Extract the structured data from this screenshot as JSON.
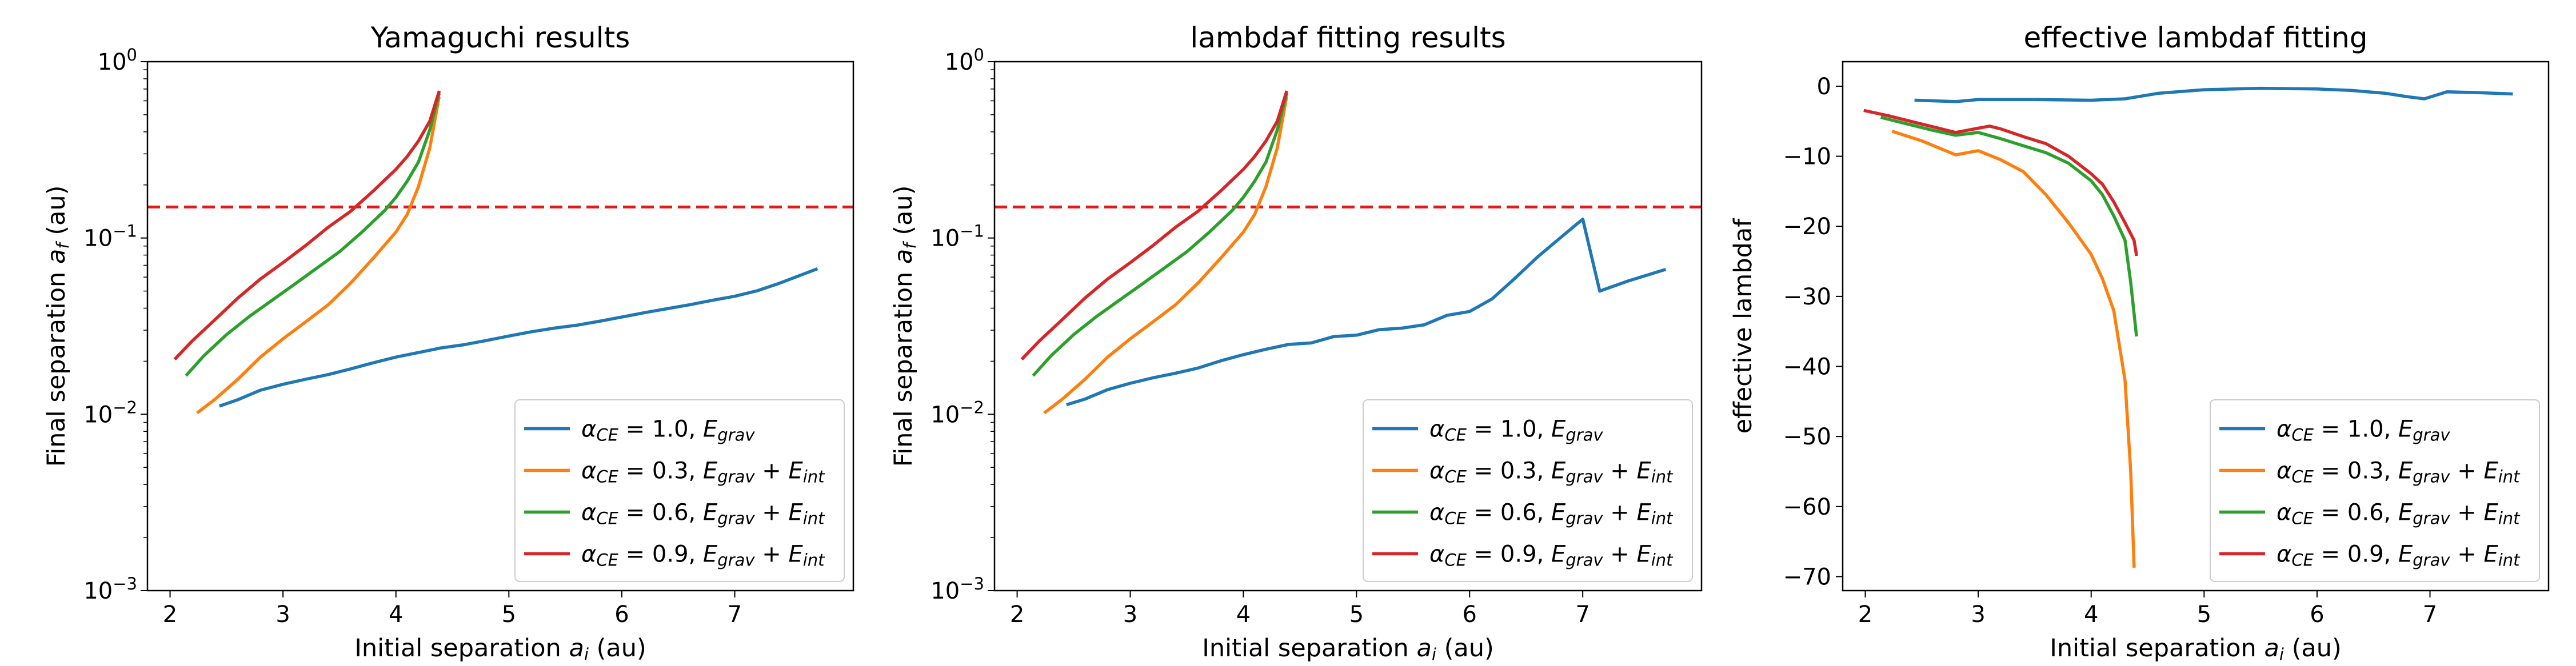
{
  "chart_data": [
    {
      "type": "line",
      "title": "Yamaguchi results",
      "xlabel": "Initial separation",
      "xlabel_var": "a",
      "xlabel_sub": "i",
      "xlabel_unit": " (au)",
      "ylabel": "Final separation",
      "ylabel_var": "a",
      "ylabel_sub": "f",
      "ylabel_unit": " (au)",
      "yscale": "log",
      "xlim": [
        1.8,
        8.05
      ],
      "ylim": [
        0.001,
        1.0
      ],
      "xticks": [
        "2",
        "3",
        "4",
        "5",
        "6",
        "7"
      ],
      "yticks": [
        {
          "base": "10",
          "exp": "0"
        },
        {
          "base": "10",
          "exp": "−1"
        },
        {
          "base": "10",
          "exp": "−2"
        },
        {
          "base": "10",
          "exp": "−3"
        }
      ],
      "hline": {
        "y": 0.15,
        "color": "#e31a1c",
        "style": "dashed"
      },
      "legend_position": "lower right",
      "series": [
        {
          "color": "#1f77b4",
          "legend": [
            {
              "t": "α",
              "i": true
            },
            {
              "t": "CE",
              "sub": true,
              "i": true
            },
            {
              "t": " = 1.0, "
            },
            {
              "t": "E",
              "i": true
            },
            {
              "t": "grav",
              "sub": true,
              "i": true
            }
          ],
          "x": [
            2.45,
            2.6,
            2.8,
            3.0,
            3.2,
            3.4,
            3.6,
            3.8,
            4.0,
            4.2,
            4.4,
            4.6,
            4.8,
            5.0,
            5.2,
            5.4,
            5.6,
            5.8,
            6.0,
            6.2,
            6.4,
            6.6,
            6.8,
            7.0,
            7.2,
            7.4,
            7.72
          ],
          "y": [
            0.0112,
            0.0121,
            0.0137,
            0.0148,
            0.0158,
            0.0168,
            0.0181,
            0.0196,
            0.0211,
            0.0224,
            0.0238,
            0.0248,
            0.0262,
            0.0278,
            0.0294,
            0.0308,
            0.032,
            0.0337,
            0.0356,
            0.0377,
            0.0397,
            0.0418,
            0.0443,
            0.0467,
            0.0502,
            0.0555,
            0.0665
          ]
        },
        {
          "color": "#ff7f0e",
          "legend": [
            {
              "t": "α",
              "i": true
            },
            {
              "t": "CE",
              "sub": true,
              "i": true
            },
            {
              "t": " = 0.3, "
            },
            {
              "t": "E",
              "i": true
            },
            {
              "t": "grav",
              "sub": true,
              "i": true
            },
            {
              "t": " + "
            },
            {
              "t": "E",
              "i": true
            },
            {
              "t": "int",
              "sub": true,
              "i": true
            }
          ],
          "x": [
            2.25,
            2.4,
            2.6,
            2.8,
            3.0,
            3.2,
            3.4,
            3.6,
            3.8,
            4.0,
            4.1,
            4.2,
            4.3,
            4.38
          ],
          "y": [
            0.0103,
            0.0122,
            0.0158,
            0.0211,
            0.0268,
            0.0334,
            0.0418,
            0.0556,
            0.0769,
            0.108,
            0.136,
            0.196,
            0.325,
            0.62
          ]
        },
        {
          "color": "#2ca02c",
          "legend": [
            {
              "t": "α",
              "i": true
            },
            {
              "t": "CE",
              "sub": true,
              "i": true
            },
            {
              "t": " = 0.6, "
            },
            {
              "t": "E",
              "i": true
            },
            {
              "t": "grav",
              "sub": true,
              "i": true
            },
            {
              "t": " + "
            },
            {
              "t": "E",
              "i": true
            },
            {
              "t": "int",
              "sub": true,
              "i": true
            }
          ],
          "x": [
            2.15,
            2.3,
            2.5,
            2.7,
            2.9,
            3.1,
            3.3,
            3.5,
            3.7,
            3.9,
            4.0,
            4.1,
            4.2,
            4.3,
            4.38
          ],
          "y": [
            0.0168,
            0.0215,
            0.0283,
            0.0358,
            0.0442,
            0.0545,
            0.0675,
            0.0835,
            0.108,
            0.143,
            0.17,
            0.21,
            0.27,
            0.41,
            0.65
          ]
        },
        {
          "color": "#d62728",
          "legend": [
            {
              "t": "α",
              "i": true
            },
            {
              "t": "CE",
              "sub": true,
              "i": true
            },
            {
              "t": " = 0.9, "
            },
            {
              "t": "E",
              "i": true
            },
            {
              "t": "grav",
              "sub": true,
              "i": true
            },
            {
              "t": " + "
            },
            {
              "t": "E",
              "i": true
            },
            {
              "t": "int",
              "sub": true,
              "i": true
            }
          ],
          "x": [
            2.05,
            2.2,
            2.4,
            2.6,
            2.8,
            3.0,
            3.2,
            3.4,
            3.6,
            3.8,
            4.0,
            4.1,
            4.2,
            4.3,
            4.38
          ],
          "y": [
            0.0208,
            0.0262,
            0.0345,
            0.0456,
            0.0585,
            0.0725,
            0.0905,
            0.115,
            0.142,
            0.185,
            0.245,
            0.29,
            0.355,
            0.46,
            0.67
          ]
        }
      ]
    },
    {
      "type": "line",
      "title": "lambdaf fitting results",
      "xlabel": "Initial separation",
      "xlabel_var": "a",
      "xlabel_sub": "i",
      "xlabel_unit": " (au)",
      "ylabel": "Final separation",
      "ylabel_var": "a",
      "ylabel_sub": "f",
      "ylabel_unit": " (au)",
      "yscale": "log",
      "xlim": [
        1.8,
        8.05
      ],
      "ylim": [
        0.001,
        1.0
      ],
      "xticks": [
        "2",
        "3",
        "4",
        "5",
        "6",
        "7"
      ],
      "yticks": [
        {
          "base": "10",
          "exp": "0"
        },
        {
          "base": "10",
          "exp": "−1"
        },
        {
          "base": "10",
          "exp": "−2"
        },
        {
          "base": "10",
          "exp": "−3"
        }
      ],
      "hline": {
        "y": 0.15,
        "color": "#e31a1c",
        "style": "dashed"
      },
      "legend_position": "lower right",
      "series": [
        {
          "color": "#1f77b4",
          "legend": [
            {
              "t": "α",
              "i": true
            },
            {
              "t": "CE",
              "sub": true,
              "i": true
            },
            {
              "t": " = 1.0, "
            },
            {
              "t": "E",
              "i": true
            },
            {
              "t": "grav",
              "sub": true,
              "i": true
            }
          ],
          "x": [
            2.45,
            2.6,
            2.8,
            3.0,
            3.2,
            3.4,
            3.6,
            3.8,
            4.0,
            4.2,
            4.4,
            4.6,
            4.8,
            5.0,
            5.2,
            5.4,
            5.6,
            5.8,
            6.0,
            6.2,
            6.4,
            6.6,
            6.8,
            7.0,
            7.15,
            7.4,
            7.72
          ],
          "y": [
            0.0114,
            0.0122,
            0.0138,
            0.015,
            0.0161,
            0.0171,
            0.0183,
            0.0201,
            0.0218,
            0.0234,
            0.0249,
            0.0254,
            0.0276,
            0.0281,
            0.0302,
            0.0308,
            0.0322,
            0.0364,
            0.0383,
            0.0452,
            0.059,
            0.078,
            0.1,
            0.128,
            0.05,
            0.057,
            0.066
          ]
        },
        {
          "color": "#ff7f0e",
          "legend": [
            {
              "t": "α",
              "i": true
            },
            {
              "t": "CE",
              "sub": true,
              "i": true
            },
            {
              "t": " = 0.3, "
            },
            {
              "t": "E",
              "i": true
            },
            {
              "t": "grav",
              "sub": true,
              "i": true
            },
            {
              "t": " + "
            },
            {
              "t": "E",
              "i": true
            },
            {
              "t": "int",
              "sub": true,
              "i": true
            }
          ],
          "x": [
            2.25,
            2.4,
            2.6,
            2.8,
            3.0,
            3.2,
            3.4,
            3.6,
            3.8,
            4.0,
            4.1,
            4.2,
            4.3,
            4.38
          ],
          "y": [
            0.0103,
            0.0122,
            0.0158,
            0.0211,
            0.0268,
            0.0334,
            0.0418,
            0.0556,
            0.0769,
            0.108,
            0.136,
            0.196,
            0.325,
            0.62
          ]
        },
        {
          "color": "#2ca02c",
          "legend": [
            {
              "t": "α",
              "i": true
            },
            {
              "t": "CE",
              "sub": true,
              "i": true
            },
            {
              "t": " = 0.6, "
            },
            {
              "t": "E",
              "i": true
            },
            {
              "t": "grav",
              "sub": true,
              "i": true
            },
            {
              "t": " + "
            },
            {
              "t": "E",
              "i": true
            },
            {
              "t": "int",
              "sub": true,
              "i": true
            }
          ],
          "x": [
            2.15,
            2.3,
            2.5,
            2.7,
            2.9,
            3.1,
            3.3,
            3.5,
            3.7,
            3.9,
            4.0,
            4.1,
            4.2,
            4.3,
            4.38
          ],
          "y": [
            0.0168,
            0.0215,
            0.0283,
            0.0358,
            0.0442,
            0.0545,
            0.0675,
            0.0835,
            0.108,
            0.143,
            0.17,
            0.21,
            0.27,
            0.41,
            0.65
          ]
        },
        {
          "color": "#d62728",
          "legend": [
            {
              "t": "α",
              "i": true
            },
            {
              "t": "CE",
              "sub": true,
              "i": true
            },
            {
              "t": " = 0.9, "
            },
            {
              "t": "E",
              "i": true
            },
            {
              "t": "grav",
              "sub": true,
              "i": true
            },
            {
              "t": " + "
            },
            {
              "t": "E",
              "i": true
            },
            {
              "t": "int",
              "sub": true,
              "i": true
            }
          ],
          "x": [
            2.05,
            2.2,
            2.4,
            2.6,
            2.8,
            3.0,
            3.2,
            3.4,
            3.6,
            3.8,
            4.0,
            4.1,
            4.2,
            4.3,
            4.38
          ],
          "y": [
            0.0208,
            0.0262,
            0.0345,
            0.0456,
            0.0585,
            0.0725,
            0.0905,
            0.115,
            0.142,
            0.185,
            0.245,
            0.29,
            0.355,
            0.46,
            0.67
          ]
        }
      ]
    },
    {
      "type": "line",
      "title": "effective lambdaf fitting",
      "xlabel": "Initial separation",
      "xlabel_var": "a",
      "xlabel_sub": "i",
      "xlabel_unit": " (au)",
      "ylabel": "effective lambdaf",
      "yscale": "linear",
      "xlim": [
        1.8,
        8.05
      ],
      "ylim": [
        -72,
        3.5
      ],
      "xticks": [
        "2",
        "3",
        "4",
        "5",
        "6",
        "7"
      ],
      "yticks_values": [
        0,
        -10,
        -20,
        -30,
        -40,
        -50,
        -60,
        -70
      ],
      "yticks": [
        "0",
        "−10",
        "−20",
        "−30",
        "−40",
        "−50",
        "−60",
        "−70"
      ],
      "legend_position": "lower right",
      "series": [
        {
          "color": "#1f77b4",
          "legend": [
            {
              "t": "α",
              "i": true
            },
            {
              "t": "CE",
              "sub": true,
              "i": true
            },
            {
              "t": " = 1.0, "
            },
            {
              "t": "E",
              "i": true
            },
            {
              "t": "grav",
              "sub": true,
              "i": true
            }
          ],
          "x": [
            2.45,
            2.8,
            3.0,
            3.5,
            4.0,
            4.3,
            4.6,
            5.0,
            5.5,
            6.0,
            6.3,
            6.6,
            6.8,
            6.95,
            7.15,
            7.4,
            7.72
          ],
          "y": [
            -2.0,
            -2.2,
            -1.9,
            -1.9,
            -2.0,
            -1.8,
            -1.0,
            -0.5,
            -0.3,
            -0.4,
            -0.6,
            -1.0,
            -1.5,
            -1.8,
            -0.8,
            -0.9,
            -1.1
          ]
        },
        {
          "color": "#ff7f0e",
          "legend": [
            {
              "t": "α",
              "i": true
            },
            {
              "t": "CE",
              "sub": true,
              "i": true
            },
            {
              "t": " = 0.3, "
            },
            {
              "t": "E",
              "i": true
            },
            {
              "t": "grav",
              "sub": true,
              "i": true
            },
            {
              "t": " + "
            },
            {
              "t": "E",
              "i": true
            },
            {
              "t": "int",
              "sub": true,
              "i": true
            }
          ],
          "x": [
            2.25,
            2.5,
            2.8,
            3.0,
            3.2,
            3.4,
            3.6,
            3.8,
            4.0,
            4.1,
            4.2,
            4.3,
            4.35,
            4.38
          ],
          "y": [
            -6.5,
            -7.8,
            -9.8,
            -9.2,
            -10.5,
            -12.2,
            -15.5,
            -19.5,
            -24.0,
            -27.5,
            -32.0,
            -42.0,
            -55.0,
            -68.5
          ]
        },
        {
          "color": "#2ca02c",
          "legend": [
            {
              "t": "α",
              "i": true
            },
            {
              "t": "CE",
              "sub": true,
              "i": true
            },
            {
              "t": " = 0.6, "
            },
            {
              "t": "E",
              "i": true
            },
            {
              "t": "grav",
              "sub": true,
              "i": true
            },
            {
              "t": " + "
            },
            {
              "t": "E",
              "i": true
            },
            {
              "t": "int",
              "sub": true,
              "i": true
            }
          ],
          "x": [
            2.15,
            2.4,
            2.6,
            2.8,
            3.0,
            3.2,
            3.4,
            3.6,
            3.8,
            4.0,
            4.1,
            4.2,
            4.3,
            4.35,
            4.4
          ],
          "y": [
            -4.5,
            -5.5,
            -6.3,
            -7.0,
            -6.6,
            -7.5,
            -8.5,
            -9.5,
            -11.0,
            -13.5,
            -15.5,
            -18.5,
            -22.0,
            -28.0,
            -35.5
          ]
        },
        {
          "color": "#d62728",
          "legend": [
            {
              "t": "α",
              "i": true
            },
            {
              "t": "CE",
              "sub": true,
              "i": true
            },
            {
              "t": " = 0.9, "
            },
            {
              "t": "E",
              "i": true
            },
            {
              "t": "grav",
              "sub": true,
              "i": true
            },
            {
              "t": " + "
            },
            {
              "t": "E",
              "i": true
            },
            {
              "t": "int",
              "sub": true,
              "i": true
            }
          ],
          "x": [
            2.0,
            2.2,
            2.4,
            2.6,
            2.8,
            3.0,
            3.1,
            3.2,
            3.4,
            3.6,
            3.8,
            4.0,
            4.1,
            4.2,
            4.3,
            4.38,
            4.4
          ],
          "y": [
            -3.5,
            -4.2,
            -5.0,
            -5.8,
            -6.6,
            -6.0,
            -5.7,
            -6.1,
            -7.2,
            -8.2,
            -10.0,
            -12.5,
            -14.0,
            -16.5,
            -19.5,
            -22.0,
            -24.0
          ]
        }
      ]
    }
  ]
}
